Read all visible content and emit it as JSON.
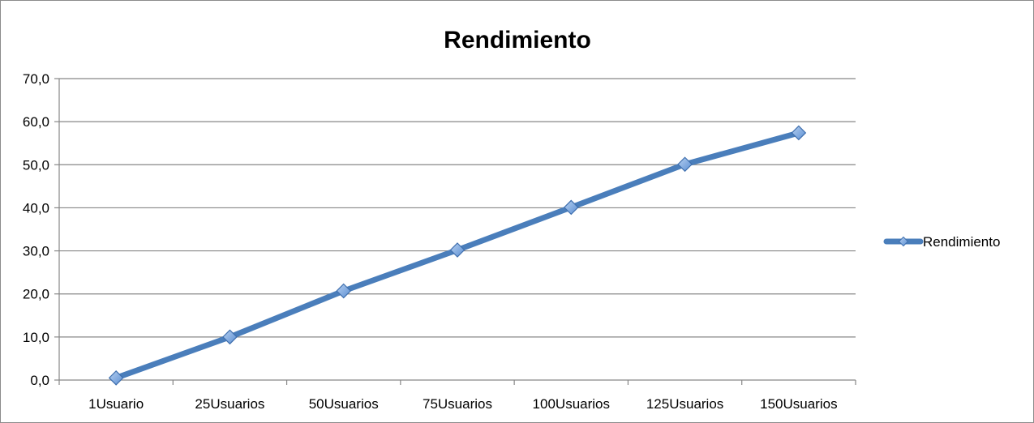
{
  "chart_data": {
    "type": "line",
    "title": "Rendimiento",
    "xlabel": "",
    "ylabel": "",
    "categories": [
      "1Usuario",
      "25Usuarios",
      "50Usuarios",
      "75Usuarios",
      "100Usuarios",
      "125Usuarios",
      "150Usuarios"
    ],
    "series": [
      {
        "name": "Rendimiento",
        "values": [
          0.5,
          10.0,
          20.7,
          30.2,
          40.1,
          50.1,
          57.4
        ],
        "color": "#4a7ebb",
        "marker": "diamond"
      }
    ],
    "ylim": [
      0,
      70
    ],
    "yticks": [
      0,
      10,
      20,
      30,
      40,
      50,
      60,
      70
    ],
    "ytick_labels": [
      "0,0",
      "10,0",
      "20,0",
      "30,0",
      "40,0",
      "50,0",
      "60,0",
      "70,0"
    ],
    "grid": "horizontal",
    "legend_position": "right"
  }
}
